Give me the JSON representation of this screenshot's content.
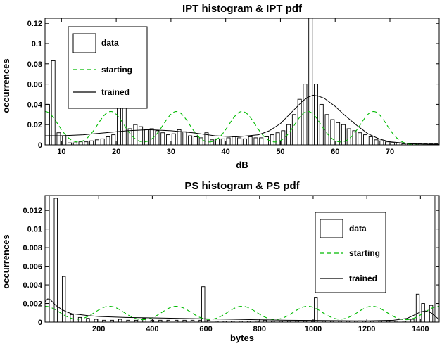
{
  "chart_data": [
    {
      "type": "bar",
      "title": "IPT histogram & IPT pdf",
      "xlabel": "dB",
      "ylabel": "occurrences",
      "xlim": [
        7,
        79
      ],
      "ylim": [
        0,
        0.125
      ],
      "xticks": [
        10,
        20,
        30,
        40,
        50,
        60,
        70
      ],
      "yticks": [
        0,
        0.02,
        0.04,
        0.06,
        0.08,
        0.1,
        0.12
      ],
      "ytick_labels": [
        "0",
        "0.02",
        "0.04",
        "0.06",
        "0.08",
        "0.1",
        "0.12"
      ],
      "grid": false,
      "legend_position": "top-left",
      "legend": [
        {
          "label": "data",
          "style": "bar"
        },
        {
          "label": "starting",
          "style": "dashed",
          "color": "#00bb00"
        },
        {
          "label": "trained",
          "style": "solid",
          "color": "#000000"
        }
      ],
      "histogram": {
        "x": [
          7.5,
          8.5,
          9.5,
          10.5,
          11.5,
          12.5,
          13.5,
          14.5,
          15.5,
          16.5,
          17.5,
          18.5,
          19.5,
          20.5,
          21.5,
          22.5,
          23.5,
          24.5,
          25.5,
          26.5,
          27.5,
          28.5,
          29.5,
          30.5,
          31.5,
          32.5,
          33.5,
          34.5,
          35.5,
          36.5,
          37.5,
          38.5,
          39.5,
          40.5,
          41.5,
          42.5,
          43.5,
          44.5,
          45.5,
          46.5,
          47.5,
          48.5,
          49.5,
          50.5,
          51.5,
          52.5,
          53.5,
          54.5,
          55.5,
          56.5,
          57.5,
          58.5,
          59.5,
          60.5,
          61.5,
          62.5,
          63.5,
          64.5,
          65.5,
          66.5,
          67.5,
          68.5,
          69.5,
          70.5,
          71.5,
          72.5,
          73.5,
          74.5,
          75.5,
          76.5,
          77.5,
          78.5
        ],
        "values": [
          0.04,
          0.083,
          0.012,
          0.009,
          0.002,
          0.002,
          0.003,
          0.003,
          0.004,
          0.005,
          0.006,
          0.008,
          0.01,
          0.062,
          0.045,
          0.016,
          0.02,
          0.018,
          0.015,
          0.016,
          0.014,
          0.012,
          0.01,
          0.011,
          0.015,
          0.013,
          0.009,
          0.008,
          0.007,
          0.012,
          0.005,
          0.006,
          0.006,
          0.007,
          0.008,
          0.007,
          0.006,
          0.008,
          0.007,
          0.007,
          0.008,
          0.01,
          0.012,
          0.014,
          0.02,
          0.03,
          0.045,
          0.06,
          0.13,
          0.06,
          0.04,
          0.03,
          0.025,
          0.022,
          0.02,
          0.016,
          0.014,
          0.012,
          0.01,
          0.008,
          0.005,
          0.004,
          0.003,
          0.002,
          0.002,
          0.001,
          0.001,
          0.001,
          0.001,
          0.001,
          0.001,
          0.001
        ]
      },
      "starting": {
        "means": [
          7,
          19,
          31,
          43,
          55,
          67
        ],
        "sigma": 2.4,
        "peak": 0.033
      },
      "trained": {
        "x": [
          7,
          10,
          14,
          18,
          22,
          26,
          30,
          34,
          38,
          42,
          46,
          48,
          50,
          52,
          54,
          55,
          56,
          57,
          58,
          60,
          62,
          64,
          66,
          68,
          70,
          74,
          79
        ],
        "y": [
          0.009,
          0.009,
          0.01,
          0.012,
          0.014,
          0.015,
          0.014,
          0.012,
          0.009,
          0.008,
          0.01,
          0.014,
          0.021,
          0.032,
          0.043,
          0.047,
          0.049,
          0.048,
          0.046,
          0.038,
          0.028,
          0.019,
          0.011,
          0.006,
          0.003,
          0.001,
          0.0005
        ]
      }
    },
    {
      "type": "bar",
      "title": "PS histogram & PS pdf",
      "xlabel": "bytes",
      "ylabel": "occurrences",
      "xlim": [
        0,
        1470
      ],
      "ylim": [
        0,
        0.0136
      ],
      "xticks": [
        200,
        400,
        600,
        800,
        1000,
        1200,
        1400
      ],
      "yticks": [
        0,
        0.002,
        0.004,
        0.006,
        0.008,
        0.01,
        0.012
      ],
      "ytick_labels": [
        "0",
        "0.002",
        "0.004",
        "0.006",
        "0.008",
        "0.01",
        "0.012"
      ],
      "grid": false,
      "legend_position": "top-right",
      "legend": [
        {
          "label": "data",
          "style": "bar"
        },
        {
          "label": "starting",
          "style": "dashed",
          "color": "#00bb00"
        },
        {
          "label": "trained",
          "style": "solid",
          "color": "#000000"
        }
      ],
      "bar_width": 18,
      "histogram": {
        "x": [
          10,
          40,
          70,
          100,
          130,
          160,
          190,
          220,
          250,
          280,
          310,
          340,
          370,
          400,
          430,
          460,
          490,
          520,
          550,
          580,
          590,
          610,
          640,
          670,
          700,
          730,
          760,
          790,
          820,
          850,
          880,
          910,
          940,
          970,
          1000,
          1010,
          1040,
          1070,
          1100,
          1130,
          1160,
          1190,
          1220,
          1250,
          1280,
          1310,
          1340,
          1370,
          1390,
          1410,
          1440,
          1460
        ],
        "values": [
          0.0145,
          0.0133,
          0.0049,
          0.0008,
          0.0005,
          0.0004,
          0.0003,
          0.0002,
          0.0002,
          0.0003,
          0.0002,
          0.0002,
          0.0004,
          0.0002,
          0.0002,
          0.0002,
          0.0002,
          0.0002,
          0.0002,
          0.0002,
          0.0038,
          0.0002,
          0.0001,
          0.0001,
          0.0001,
          0.0001,
          0.0001,
          0.0001,
          0.0002,
          0.0001,
          0.0001,
          0.0001,
          0.0001,
          0.0001,
          0.0001,
          0.0026,
          0.0001,
          0.0001,
          0.0001,
          0.0001,
          0.0001,
          0.0001,
          0.0001,
          0.0001,
          0.0001,
          0.0001,
          0.0001,
          0.0003,
          0.003,
          0.002,
          0.0018,
          0.0145
        ]
      },
      "starting": {
        "means": [
          0,
          240,
          490,
          735,
          980,
          1220,
          1470
        ],
        "sigma": 55,
        "peak": 0.0017
      },
      "trained": {
        "x": [
          0,
          10,
          20,
          30,
          40,
          60,
          80,
          100,
          130,
          160,
          200,
          300,
          400,
          500,
          600,
          700,
          800,
          900,
          1000,
          1100,
          1200,
          1300,
          1350,
          1380,
          1400,
          1420,
          1440,
          1460,
          1470
        ],
        "y": [
          0.0022,
          0.0025,
          0.0024,
          0.0021,
          0.0018,
          0.0014,
          0.0011,
          0.0009,
          0.0008,
          0.0007,
          0.0006,
          0.0005,
          0.00045,
          0.0004,
          0.00035,
          0.0003,
          0.00025,
          0.0002,
          0.00018,
          0.00015,
          0.00013,
          0.0002,
          0.0004,
          0.0008,
          0.0011,
          0.0012,
          0.001,
          0.0005,
          0.0003
        ]
      }
    }
  ]
}
